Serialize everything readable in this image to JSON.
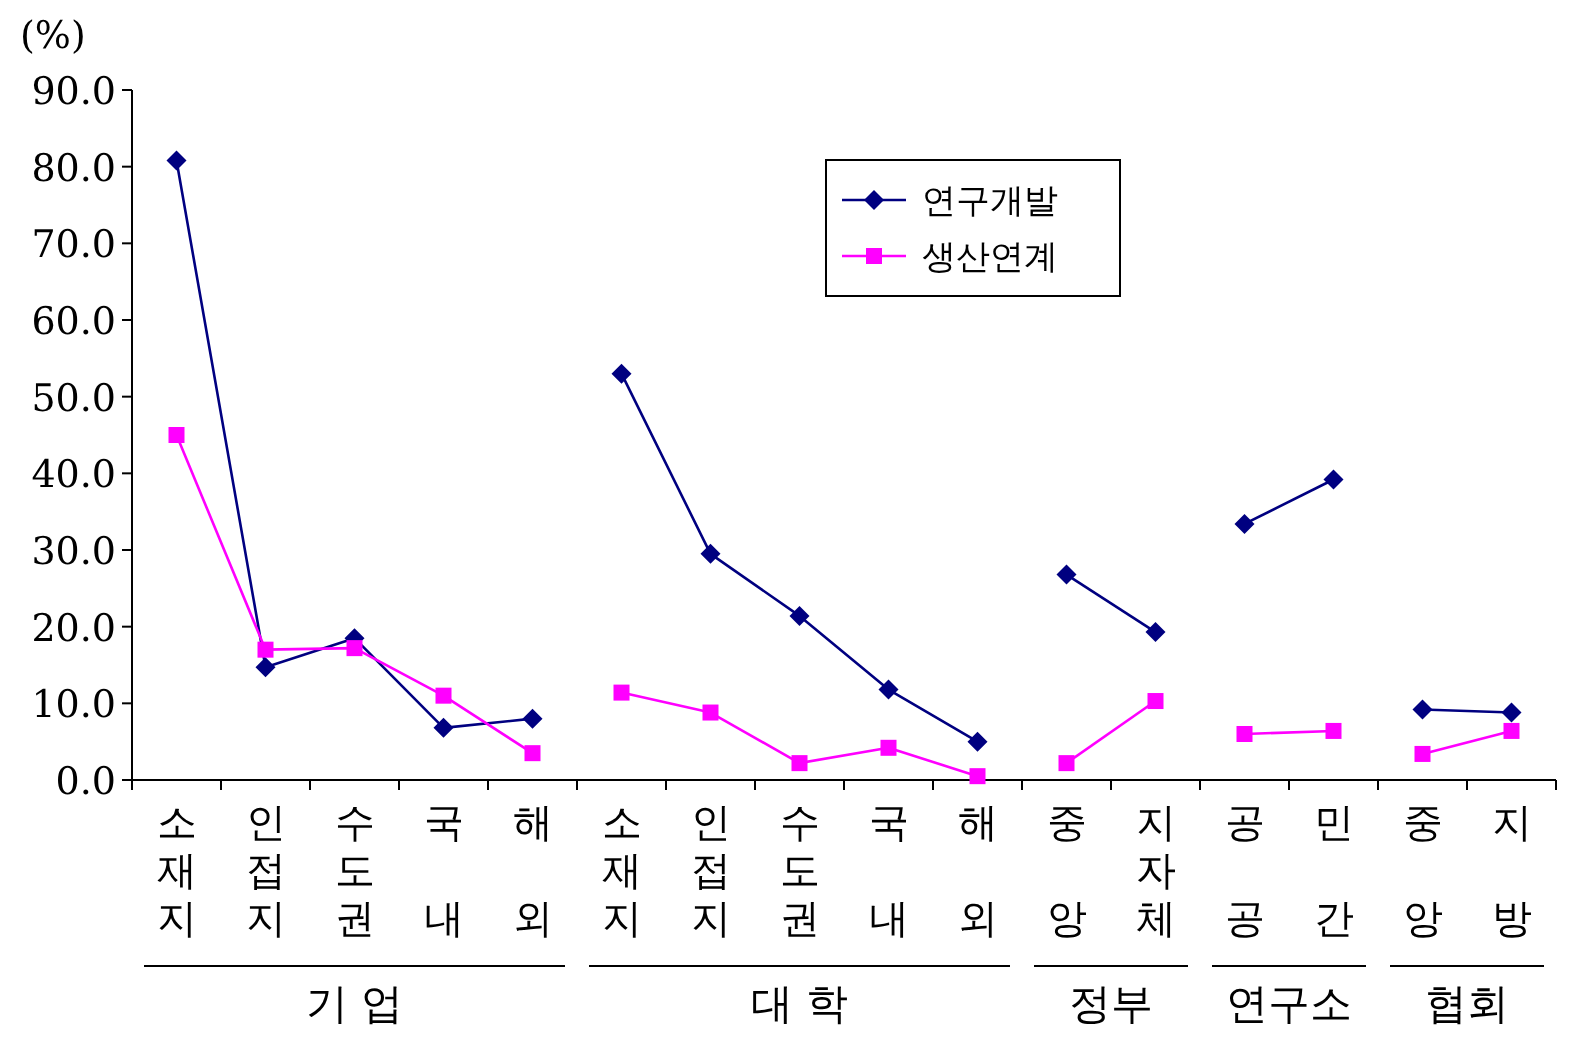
{
  "chart_data": {
    "type": "line",
    "ylabel": "(%)",
    "categories": [
      "소재지",
      "인접지",
      "수도권",
      "국내",
      "해외",
      "소재지",
      "인접지",
      "수도권",
      "국내",
      "해외",
      "중앙",
      "지자체",
      "공공",
      "민간",
      "중앙",
      "지방"
    ],
    "series": [
      {
        "name": "연구개발",
        "color": "#000080",
        "marker": "diamond",
        "values": [
          80.8,
          14.7,
          18.5,
          6.8,
          8.0,
          null,
          null,
          null,
          null,
          null,
          null,
          null,
          null,
          null,
          null,
          null
        ]
      },
      {
        "name": "생산연계",
        "color": "#ff00ff",
        "marker": "square",
        "values": [
          45.0,
          17.0,
          17.2,
          11.0,
          3.5,
          null,
          null,
          null,
          null,
          null,
          null,
          null,
          null,
          null,
          null,
          null
        ]
      },
      {
        "color": "#000080",
        "marker": "diamond",
        "values": [
          null,
          null,
          null,
          null,
          null,
          53.0,
          29.5,
          21.4,
          11.8,
          5.0,
          null,
          null,
          null,
          null,
          null,
          null
        ]
      },
      {
        "color": "#ff00ff",
        "marker": "square",
        "values": [
          null,
          null,
          null,
          null,
          null,
          11.4,
          8.8,
          2.2,
          4.2,
          0.5,
          null,
          null,
          null,
          null,
          null,
          null
        ]
      },
      {
        "color": "#000080",
        "marker": "diamond",
        "values": [
          null,
          null,
          null,
          null,
          null,
          null,
          null,
          null,
          null,
          null,
          26.8,
          19.3,
          null,
          null,
          null,
          null
        ]
      },
      {
        "color": "#ff00ff",
        "marker": "square",
        "values": [
          null,
          null,
          null,
          null,
          null,
          null,
          null,
          null,
          null,
          null,
          2.2,
          10.3,
          null,
          null,
          null,
          null
        ]
      },
      {
        "color": "#000080",
        "marker": "diamond",
        "values": [
          null,
          null,
          null,
          null,
          null,
          null,
          null,
          null,
          null,
          null,
          null,
          null,
          33.4,
          39.2,
          null,
          null
        ]
      },
      {
        "color": "#ff00ff",
        "marker": "square",
        "values": [
          null,
          null,
          null,
          null,
          null,
          null,
          null,
          null,
          null,
          null,
          null,
          null,
          6.0,
          6.4,
          null,
          null
        ]
      },
      {
        "color": "#000080",
        "marker": "diamond",
        "values": [
          null,
          null,
          null,
          null,
          null,
          null,
          null,
          null,
          null,
          null,
          null,
          null,
          null,
          null,
          9.2,
          8.8
        ]
      },
      {
        "color": "#ff00ff",
        "marker": "square",
        "values": [
          null,
          null,
          null,
          null,
          null,
          null,
          null,
          null,
          null,
          null,
          null,
          null,
          null,
          null,
          3.4,
          6.4
        ]
      }
    ],
    "annotations": [
      "기 업",
      "대 학",
      "정부",
      "연구소",
      "협회"
    ],
    "ylim": [
      0,
      90
    ],
    "yticks": [
      {
        "value": 0,
        "label": "0.0"
      },
      {
        "value": 10,
        "label": "10.0"
      },
      {
        "value": 20,
        "label": "20.0"
      },
      {
        "value": 30,
        "label": "30.0"
      },
      {
        "value": 40,
        "label": "40.0"
      },
      {
        "value": 50,
        "label": "50.0"
      },
      {
        "value": 60,
        "label": "60.0"
      },
      {
        "value": 70,
        "label": "70.0"
      },
      {
        "value": 80,
        "label": "80.0"
      },
      {
        "value": 90,
        "label": "90.0"
      }
    ],
    "legend": "top",
    "grid": false
  }
}
